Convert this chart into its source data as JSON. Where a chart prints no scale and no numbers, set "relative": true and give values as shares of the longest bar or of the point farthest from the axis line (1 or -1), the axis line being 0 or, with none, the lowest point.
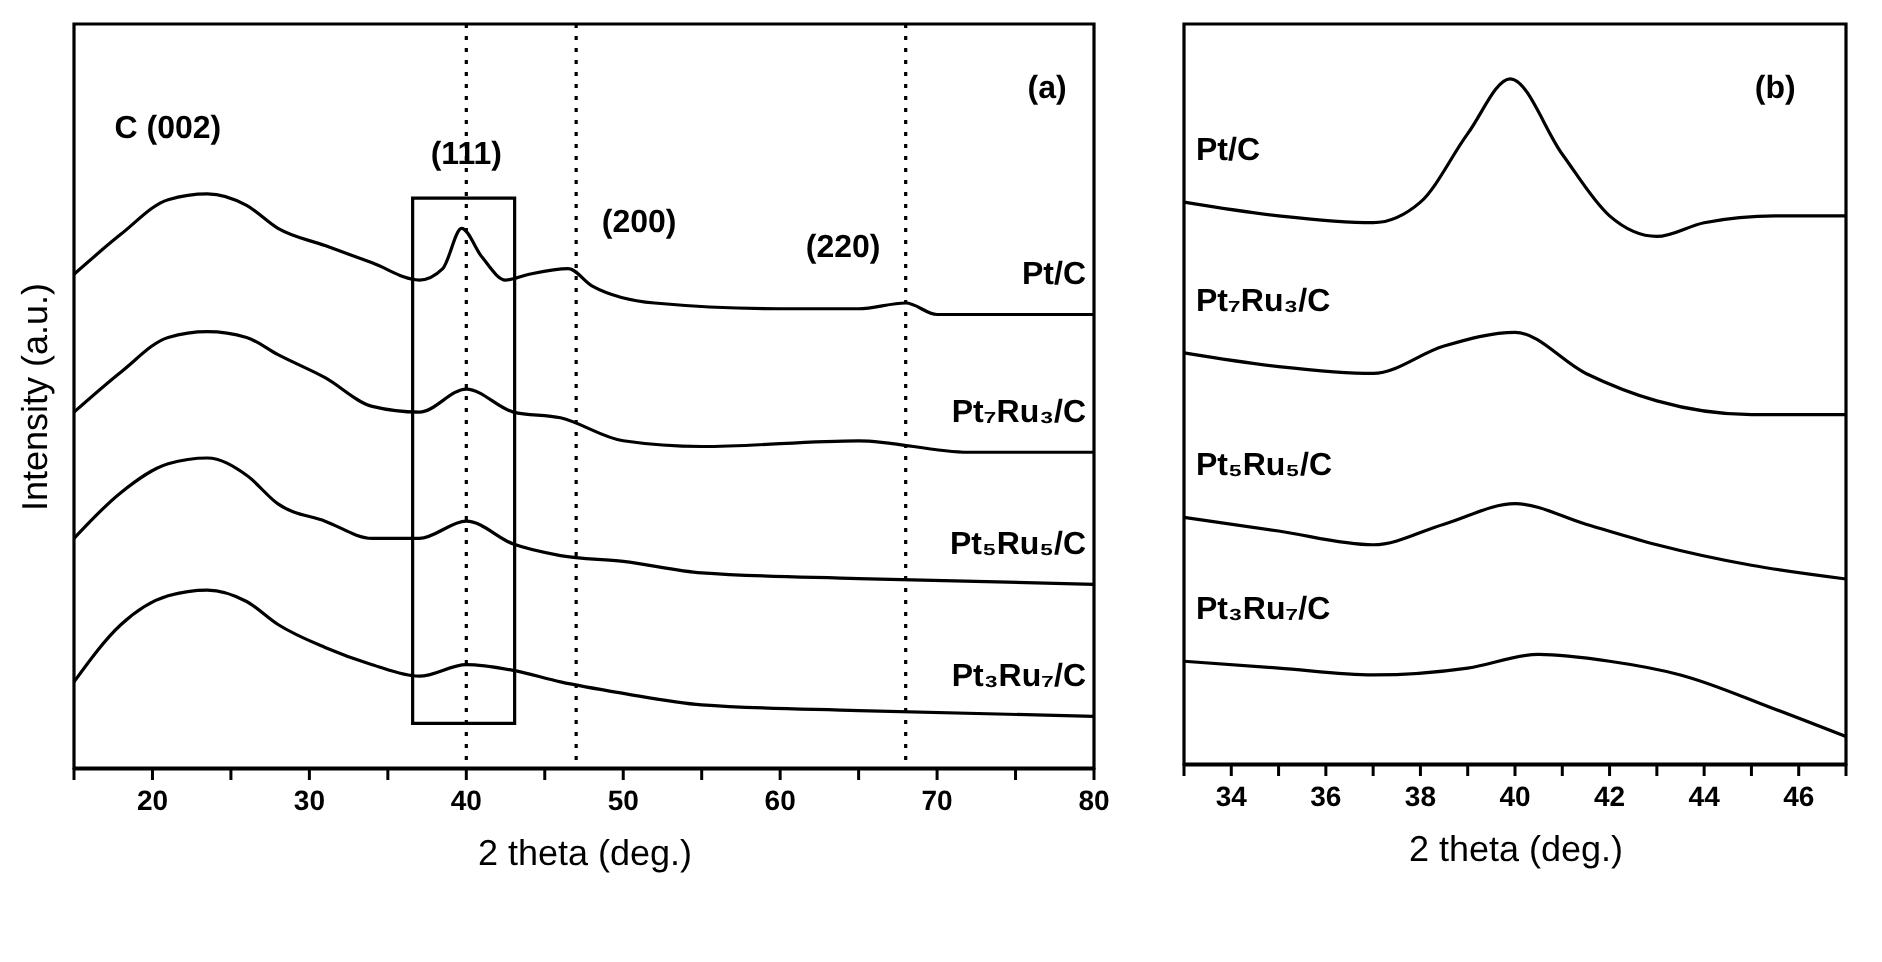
{
  "chart_data": [
    {
      "type": "line",
      "relative": true,
      "xlabel": "2 theta (deg.)",
      "ylabel": "Intensity (a.u.)",
      "xlim": [
        15,
        80
      ],
      "xticks": [
        {
          "value": 15,
          "label": null
        },
        20,
        {
          "value": 25,
          "label": null
        },
        30,
        {
          "value": 35,
          "label": null
        },
        40,
        {
          "value": 45,
          "label": null
        },
        50,
        {
          "value": 55,
          "label": null
        },
        60,
        {
          "value": 65,
          "label": null
        },
        70,
        {
          "value": 75,
          "label": null
        },
        80
      ],
      "series": [
        {
          "name": "Pt/C",
          "color": "#000000",
          "x": [
            15,
            18,
            21,
            23.5,
            26,
            28,
            31,
            34,
            37,
            38.5,
            39.7,
            41,
            42.5,
            44,
            46.5,
            48,
            52,
            60,
            65,
            68,
            70,
            80
          ],
          "values": [
            0.86,
            0.93,
            0.99,
            1.0,
            0.98,
            0.94,
            0.91,
            0.88,
            0.85,
            0.87,
            0.94,
            0.89,
            0.85,
            0.86,
            0.87,
            0.84,
            0.81,
            0.8,
            0.8,
            0.81,
            0.79,
            0.79
          ]
        },
        {
          "name": "Pt₇Ru₃/C",
          "color": "#000000",
          "x": [
            15,
            18,
            21,
            23.5,
            26,
            28,
            31,
            34,
            37,
            40,
            43,
            46,
            50,
            55,
            65,
            72,
            80
          ],
          "values": [
            0.62,
            0.69,
            0.75,
            0.76,
            0.75,
            0.72,
            0.68,
            0.63,
            0.62,
            0.66,
            0.62,
            0.61,
            0.57,
            0.56,
            0.57,
            0.55,
            0.55
          ]
        },
        {
          "name": "Pt₅Ru₅/C",
          "color": "#000000",
          "x": [
            15,
            18,
            21,
            23.5,
            26,
            28,
            31,
            34,
            37,
            40,
            43,
            46,
            50,
            55,
            65,
            80
          ],
          "values": [
            0.4,
            0.48,
            0.53,
            0.54,
            0.51,
            0.46,
            0.43,
            0.4,
            0.4,
            0.43,
            0.39,
            0.37,
            0.36,
            0.34,
            0.33,
            0.32
          ]
        },
        {
          "name": "Pt₃Ru₇/C",
          "color": "#000000",
          "x": [
            15,
            18,
            21,
            23.5,
            26,
            28,
            31,
            34,
            37,
            40,
            43,
            46,
            50,
            55,
            65,
            80
          ],
          "values": [
            0.15,
            0.25,
            0.3,
            0.31,
            0.29,
            0.25,
            0.21,
            0.18,
            0.16,
            0.18,
            0.17,
            0.15,
            0.13,
            0.11,
            0.1,
            0.09
          ]
        }
      ],
      "ref_lines": [
        {
          "axis": "x",
          "value": 40,
          "line_style": "dotted"
        },
        {
          "axis": "x",
          "value": 47,
          "line_style": "dotted"
        },
        {
          "axis": "x",
          "value": 68,
          "line_style": "dotted"
        }
      ],
      "annotations": [
        "C (002)",
        {
          "text": "(111)",
          "x": 40,
          "y": 1.07
        },
        "(200)",
        "(220)",
        "(a)"
      ]
    },
    {
      "type": "line",
      "relative": true,
      "xlabel": "2 theta (deg.)",
      "xlim": [
        33,
        47
      ],
      "xticks": [
        {
          "value": 33,
          "label": null
        },
        34,
        {
          "value": 35,
          "label": null
        },
        36,
        {
          "value": 37,
          "label": null
        },
        38,
        {
          "value": 39,
          "label": null
        },
        40,
        {
          "value": 41,
          "label": null
        },
        42,
        {
          "value": 43,
          "label": null
        },
        44,
        {
          "value": 45,
          "label": null
        },
        46,
        {
          "value": 47,
          "label": null
        }
      ],
      "series": [
        {
          "name": "Pt/C",
          "color": "#000000",
          "x": [
            33,
            35,
            37,
            38,
            39,
            39.9,
            41,
            42,
            43,
            44,
            45.5,
            47
          ],
          "values": [
            0.82,
            0.8,
            0.79,
            0.82,
            0.92,
            1.0,
            0.89,
            0.8,
            0.77,
            0.79,
            0.8,
            0.8
          ]
        },
        {
          "name": "Pt₇Ru₃/C",
          "color": "#000000",
          "x": [
            33,
            35,
            37,
            38.5,
            40,
            41.5,
            43,
            45,
            47
          ],
          "values": [
            0.6,
            0.58,
            0.57,
            0.61,
            0.63,
            0.57,
            0.53,
            0.51,
            0.51
          ]
        },
        {
          "name": "Pt₅Ru₅/C",
          "color": "#000000",
          "x": [
            33,
            35,
            37,
            38.5,
            40,
            41.5,
            43,
            45,
            47
          ],
          "values": [
            0.36,
            0.34,
            0.32,
            0.35,
            0.38,
            0.35,
            0.32,
            0.29,
            0.27
          ]
        },
        {
          "name": "Pt₃Ru₇/C",
          "color": "#000000",
          "x": [
            33,
            35,
            37,
            39,
            40.5,
            42,
            43.5,
            45.5,
            47
          ],
          "values": [
            0.15,
            0.14,
            0.13,
            0.14,
            0.16,
            0.15,
            0.13,
            0.08,
            0.04
          ]
        }
      ],
      "annotations": [
        "(b)"
      ]
    }
  ]
}
